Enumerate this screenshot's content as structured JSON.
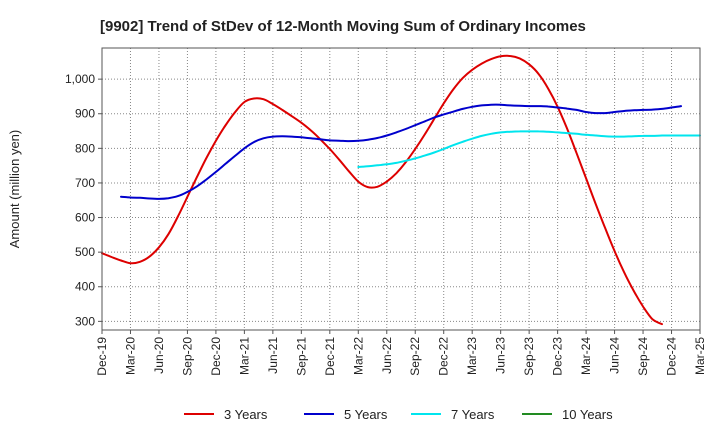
{
  "chart_data": {
    "type": "line",
    "title": "[9902]  Trend of StDev of 12-Month Moving Sum of Ordinary Incomes",
    "xlabel": "",
    "ylabel": "Amount (million yen)",
    "ylim": [
      275,
      1090
    ],
    "yticks": [
      300,
      400,
      500,
      600,
      700,
      800,
      900,
      1000
    ],
    "ytick_labels": [
      "300",
      "400",
      "500",
      "600",
      "700",
      "800",
      "900",
      "1,000"
    ],
    "xticks": [
      "Dec-19",
      "Mar-20",
      "Jun-20",
      "Sep-20",
      "Dec-20",
      "Mar-21",
      "Jun-21",
      "Sep-21",
      "Dec-21",
      "Mar-22",
      "Jun-22",
      "Sep-22",
      "Dec-22",
      "Mar-23",
      "Jun-23",
      "Sep-23",
      "Dec-23",
      "Mar-24",
      "Jun-24",
      "Sep-24",
      "Dec-24",
      "Mar-25"
    ],
    "grid": true,
    "series": [
      {
        "name": "3 Years",
        "color": "#dd0000",
        "start_month_index": 0,
        "values": [
          497,
          486,
          476,
          468,
          472,
          487,
          514,
          552,
          603,
          660,
          717,
          772,
          822,
          866,
          904,
          934,
          944,
          942,
          928,
          911,
          893,
          874,
          852,
          826,
          798,
          767,
          734,
          704,
          688,
          689,
          704,
          728,
          760,
          798,
          840,
          885,
          930,
          970,
          1003,
          1027,
          1045,
          1058,
          1066,
          1067,
          1060,
          1043,
          1015,
          973,
          920,
          857,
          786,
          713,
          640,
          570,
          503,
          442,
          389,
          343,
          306,
          292
        ]
      },
      {
        "name": "5 Years",
        "color": "#0000cc",
        "start_month_index": 2,
        "values": [
          660,
          658,
          657,
          655,
          654,
          656,
          662,
          674,
          690,
          710,
          732,
          755,
          778,
          800,
          818,
          829,
          834,
          835,
          834,
          832,
          829,
          826,
          823,
          822,
          821,
          822,
          825,
          830,
          837,
          846,
          856,
          867,
          878,
          889,
          898,
          906,
          914,
          920,
          924,
          926,
          926,
          924,
          923,
          922,
          922,
          921,
          918,
          915,
          911,
          905,
          902,
          902,
          905,
          908,
          910,
          911,
          912,
          914,
          918,
          922
        ]
      },
      {
        "name": "7 Years",
        "color": "#00e5ee",
        "start_month_index": 27,
        "values": [
          746,
          748,
          751,
          754,
          758,
          764,
          771,
          779,
          788,
          798,
          809,
          819,
          828,
          836,
          842,
          846,
          848,
          849,
          849,
          849,
          848,
          846,
          844,
          842,
          839,
          837,
          835,
          834,
          834,
          835,
          836,
          836,
          837,
          837,
          837,
          837,
          837
        ]
      },
      {
        "name": "10 Years",
        "color": "#228b22",
        "start_month_index": 0,
        "values": []
      }
    ]
  }
}
